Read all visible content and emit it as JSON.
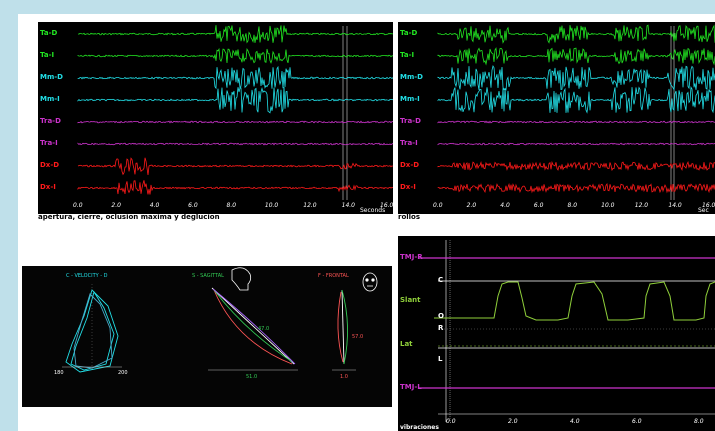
{
  "colors": {
    "green": "#22e622",
    "cyan": "#22e0e8",
    "magenta": "#cc33cc",
    "red": "#ff1a1a",
    "olive": "#8fcf3a"
  },
  "emg_left": {
    "caption": "apertura, cierre, oclusion maxima y deglucion",
    "unit": "Seconds",
    "channels": [
      "Ta-D",
      "Ta-I",
      "Mm-D",
      "Mm-I",
      "Tra-D",
      "Tra-I",
      "Dx-D",
      "Dx-I"
    ],
    "ticks": [
      "0.0",
      "2.0",
      "4.0",
      "6.0",
      "8.0",
      "10.0",
      "12.0",
      "14.0",
      "16.0"
    ]
  },
  "emg_right": {
    "caption": "rollos",
    "unit": "Sec",
    "channels": [
      "Ta-D",
      "Ta-I",
      "Mm-D",
      "Mm-I",
      "Tra-D",
      "Tra-I",
      "Dx-D",
      "Dx-I"
    ],
    "ticks": [
      "0.0",
      "2.0",
      "4.0",
      "6.0",
      "8.0",
      "10.0",
      "12.0",
      "14.0",
      "16.0"
    ]
  },
  "kinesiography": {
    "left_title": "C - VELOCITY - D",
    "mid_title": "S - SAGITTAL",
    "right_title": "F - FRONTAL",
    "left_scale": [
      "180",
      "200"
    ],
    "mid_values": [
      "47.0",
      "51.0"
    ],
    "right_values": [
      "57.0",
      "1.0"
    ]
  },
  "tmj": {
    "labels": [
      "TMJ-R",
      "C",
      "Slant",
      "O",
      "R",
      "Lat",
      "L",
      "TMJ-L"
    ],
    "ticks": [
      "0.0",
      "2.0",
      "4.0",
      "6.0",
      "8.0"
    ],
    "caption": "vibraciones"
  }
}
